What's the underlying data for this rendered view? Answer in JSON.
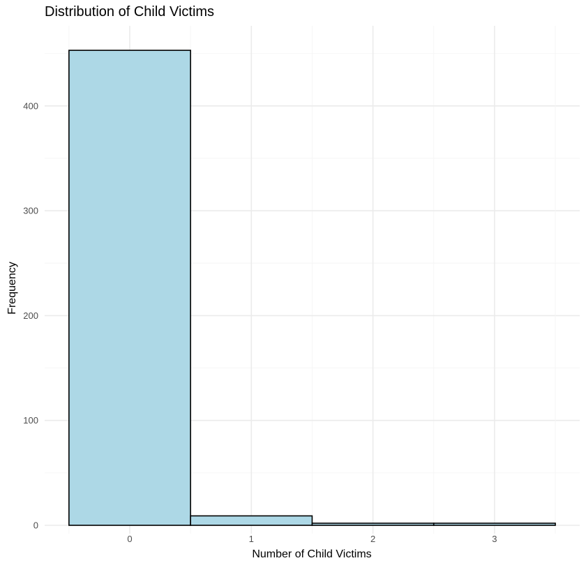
{
  "chart_data": {
    "type": "bar",
    "title": "Distribution of Child Victims",
    "xlabel": "Number of Child Victims",
    "ylabel": "Frequency",
    "categories": [
      "0",
      "1",
      "2",
      "3"
    ],
    "values": [
      453,
      9,
      2,
      2
    ],
    "ylim": [
      0,
      453
    ],
    "y_ticks": [
      "0",
      "100",
      "200",
      "300",
      "400"
    ],
    "grid": true,
    "legend": "none",
    "colors": {
      "bar_fill": "#add8e6",
      "bar_outline": "#000000"
    }
  }
}
